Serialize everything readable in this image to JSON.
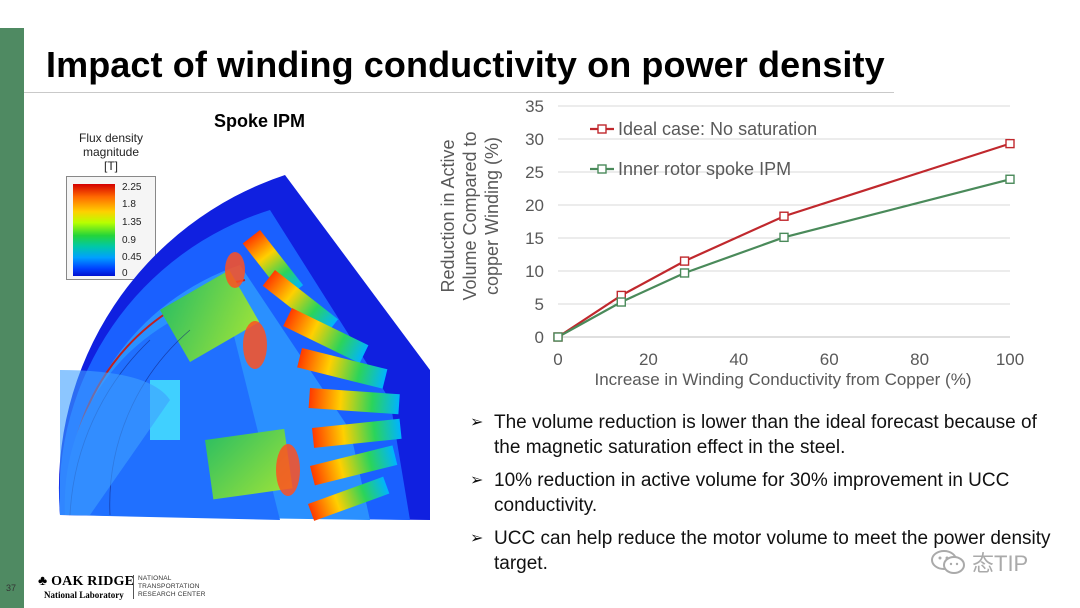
{
  "slide": {
    "title": "Impact of winding conductivity on power density",
    "subtitle": "Spoke IPM",
    "page_number": "37",
    "accent_color": "#4f8a62"
  },
  "colorbar": {
    "title_lines": [
      "Flux density",
      "magnitude",
      "[T]"
    ],
    "ticks": [
      "2.25",
      "1.8",
      "1.35",
      "0.9",
      "0.45",
      "0"
    ]
  },
  "chart_data": {
    "type": "line",
    "xlabel": "Increase in Winding Conductivity from Copper (%)",
    "ylabel_lines": [
      "Reduction in Active",
      "Volume Compared to",
      "copper  Winding (%)"
    ],
    "xlim": [
      0,
      100
    ],
    "ylim": [
      0,
      35
    ],
    "xticks": [
      0,
      20,
      40,
      60,
      80,
      100
    ],
    "yticks": [
      0,
      5,
      10,
      15,
      20,
      25,
      30,
      35
    ],
    "grid": "horizontal",
    "legend_position": "top-left",
    "series": [
      {
        "name": "Ideal case: No saturation",
        "color": "#c0282d",
        "x": [
          0,
          14,
          28,
          50,
          100
        ],
        "y": [
          0,
          6.3,
          11.5,
          18.3,
          29.3
        ]
      },
      {
        "name": "Inner rotor spoke IPM",
        "color": "#4a8a5a",
        "x": [
          0,
          14,
          28,
          50,
          100
        ],
        "y": [
          0,
          5.3,
          9.7,
          15.1,
          23.9
        ]
      }
    ]
  },
  "bullets": [
    "The volume reduction is lower than the ideal forecast because of the magnetic saturation effect in the steel.",
    "10% reduction  in active volume for 30% improvement in UCC conductivity.",
    "UCC can help reduce the motor volume to meet the power density target."
  ],
  "footer": {
    "logo_name": "OAK RIDGE",
    "logo_sub": "National Laboratory",
    "partner_lines": [
      "NATIONAL",
      "TRANSPORTATION",
      "RESEARCH CENTER"
    ]
  },
  "watermark": {
    "text": "态TIP",
    "icon": "wechat-icon"
  }
}
